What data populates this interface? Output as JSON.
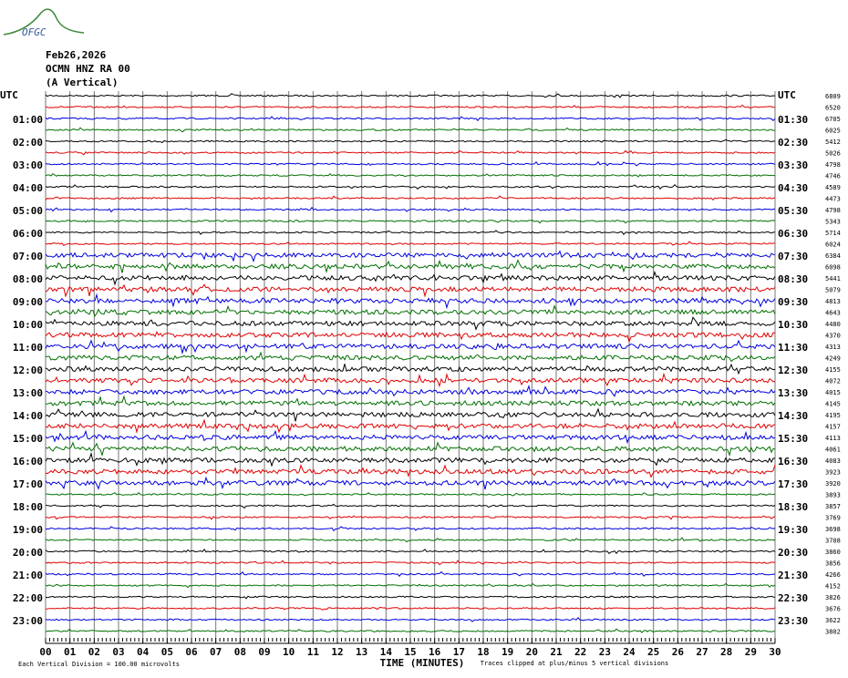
{
  "logo": "OFGC",
  "chart_data": {
    "type": "helicorder",
    "title_lines": [
      "Feb26,2026",
      "OCMN HNZ RA 00",
      "(A Vertical)"
    ],
    "left_labels": [
      "UTC",
      "01:00",
      "02:00",
      "03:00",
      "04:00",
      "05:00",
      "06:00",
      "07:00",
      "08:00",
      "09:00",
      "10:00",
      "11:00",
      "12:00",
      "13:00",
      "14:00",
      "15:00",
      "16:00",
      "17:00",
      "18:00",
      "19:00",
      "20:00",
      "21:00",
      "22:00",
      "23:00"
    ],
    "right_labels": [
      "UTC",
      "01:30",
      "02:30",
      "03:30",
      "04:30",
      "05:30",
      "06:30",
      "07:30",
      "08:30",
      "09:30",
      "10:30",
      "11:30",
      "12:30",
      "13:30",
      "14:30",
      "15:30",
      "16:30",
      "17:30",
      "18:30",
      "19:30",
      "20:30",
      "21:30",
      "22:30",
      "23:30"
    ],
    "trace_levels": [
      6809,
      6520,
      6705,
      6025,
      5412,
      5026,
      4798,
      4746,
      4589,
      4473,
      4798,
      5343,
      5714,
      6024,
      6384,
      6098,
      5441,
      5079,
      4813,
      4643,
      4480,
      4370,
      4313,
      4249,
      4155,
      4072,
      4015,
      4145,
      4195,
      4157,
      4113,
      4061,
      4083,
      3923,
      3920,
      3893,
      3857,
      3769,
      3698,
      3708,
      3860,
      3856,
      4266,
      4152,
      3826,
      3676,
      3622,
      3802
    ],
    "trace_colors": [
      "#000000",
      "#e00000",
      "#0000e0",
      "#007000"
    ],
    "xlim": [
      0,
      30
    ],
    "xticks": [
      {
        "value": 0,
        "label": "00"
      },
      {
        "value": 1,
        "label": "01"
      },
      {
        "value": 2,
        "label": "02"
      },
      {
        "value": 3,
        "label": "03"
      },
      {
        "value": 4,
        "label": "04"
      },
      {
        "value": 5,
        "label": "05"
      },
      {
        "value": 6,
        "label": "06"
      },
      {
        "value": 7,
        "label": "07"
      },
      {
        "value": 8,
        "label": "08"
      },
      {
        "value": 9,
        "label": "09"
      },
      10,
      11,
      12,
      13,
      14,
      15,
      16,
      17,
      18,
      19,
      20,
      21,
      22,
      23,
      24,
      25,
      26,
      27,
      28,
      29,
      30
    ],
    "xlabel": "TIME (MINUTES)",
    "footer_left": "Each Vertical Division =  100.00 microvolts",
    "footer_right": "Traces clipped at plus/minus 5 vertical divisions"
  }
}
